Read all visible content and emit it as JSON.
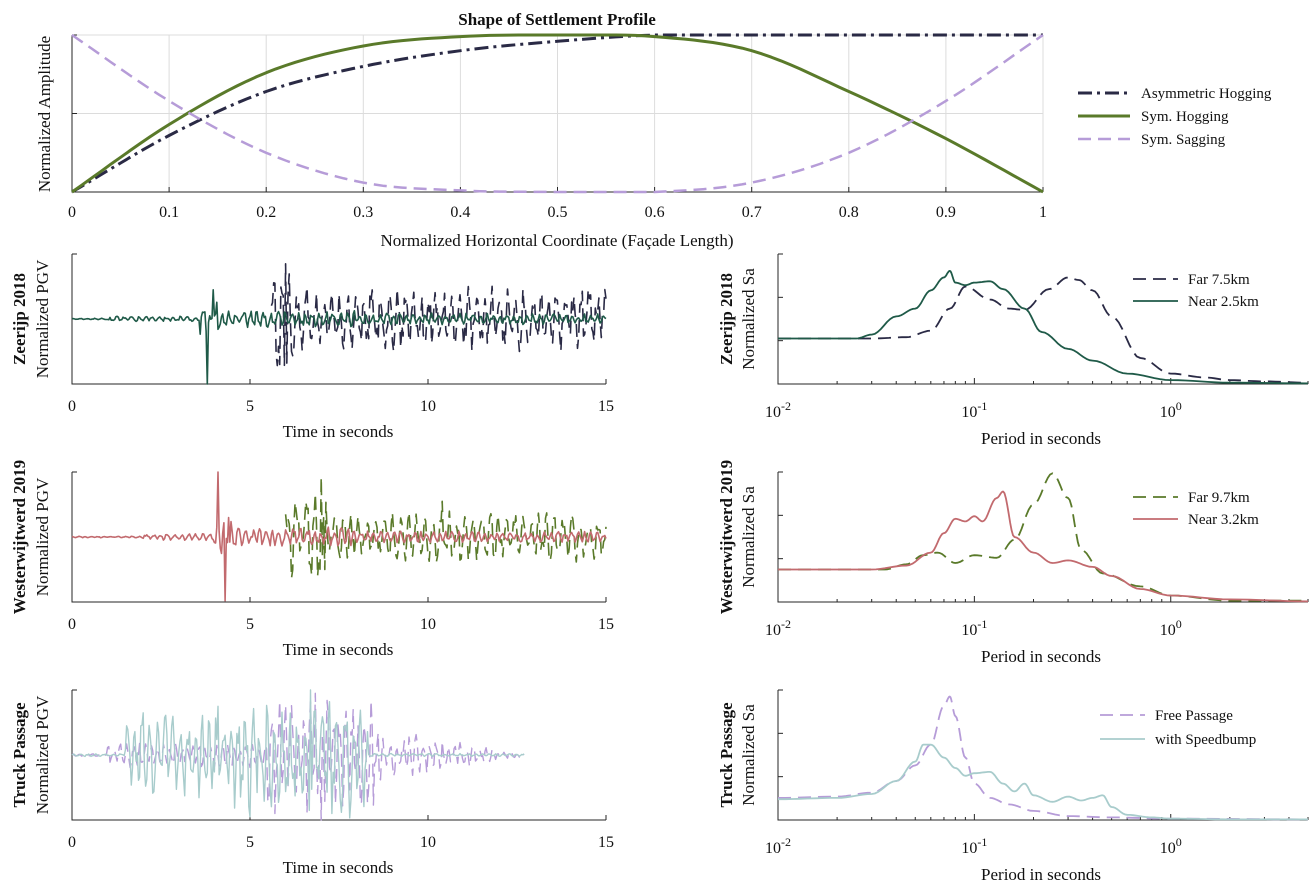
{
  "chart_data": [
    {
      "id": "settlement",
      "type": "line",
      "title": "Shape of Settlement Profile",
      "xlabel": "Normalized Horizontal Coordinate (Façade Length)",
      "ylabel": "Normalized Amplitude",
      "xlim": [
        0,
        1
      ],
      "ylim": [
        0,
        1
      ],
      "xticks": [
        0,
        0.1,
        0.2,
        0.3,
        0.4,
        0.5,
        0.6,
        0.7,
        0.8,
        0.9,
        1
      ],
      "xtick_labels": [
        "0",
        "0.1",
        "0.2",
        "0.3",
        "0.4",
        "0.5",
        "0.6",
        "0.7",
        "0.8",
        "0.9",
        "1"
      ],
      "grid": true,
      "legend": "right",
      "series": [
        {
          "name": "Asymmetric Hogging",
          "color": "#2a2a45",
          "dash": "dashdot",
          "x": [
            0,
            0.1,
            0.2,
            0.3,
            0.4,
            0.5,
            0.6,
            0.7,
            0.8,
            0.9,
            1
          ],
          "y": [
            0,
            0.36,
            0.64,
            0.8,
            0.9,
            0.96,
            1,
            1,
            1,
            1,
            1
          ]
        },
        {
          "name": "Sym. Hogging",
          "color": "#5a7a2a",
          "dash": "solid",
          "x": [
            0,
            0.1,
            0.2,
            0.3,
            0.4,
            0.5,
            0.6,
            0.7,
            0.8,
            0.9,
            1
          ],
          "y": [
            0,
            0.43,
            0.76,
            0.93,
            0.99,
            1,
            0.99,
            0.9,
            0.64,
            0.34,
            0
          ]
        },
        {
          "name": "Sym. Sagging",
          "color": "#b69cd8",
          "dash": "dashed",
          "x": [
            0,
            0.1,
            0.2,
            0.3,
            0.4,
            0.5,
            0.6,
            0.7,
            0.8,
            0.9,
            1
          ],
          "y": [
            1,
            0.58,
            0.25,
            0.06,
            0.01,
            0,
            0,
            0.06,
            0.25,
            0.58,
            1
          ]
        }
      ]
    },
    {
      "id": "zeerijp-time",
      "type": "line",
      "xlabel": "Time in seconds",
      "ylabel": "Normalized PGV",
      "row_label": "Zeerijp 2018",
      "xlim": [
        0,
        15
      ],
      "xticks": [
        0,
        5,
        10,
        15
      ],
      "xtick_labels": [
        "0",
        "5",
        "10",
        "15"
      ],
      "series": [
        {
          "color": "#2a2a45",
          "dash": "dashed",
          "t_start": 5.6,
          "t_end": 15,
          "peak": 0.85
        },
        {
          "color": "#1f5a48",
          "dash": "solid",
          "t_start": 0,
          "t_end": 15,
          "peak_time": 3.8,
          "peak": -1.0
        }
      ]
    },
    {
      "id": "zeerijp-spectrum",
      "type": "line",
      "xlabel": "Period in seconds",
      "ylabel": "Normalized Sa",
      "row_label": "Zeerijp 2018",
      "xscale": "log",
      "xlim": [
        0.01,
        5
      ],
      "xticks": [
        0.01,
        0.1,
        1
      ],
      "xtick_labels": [
        {
          "base": "10",
          "exp": "-2"
        },
        {
          "base": "10",
          "exp": "-1"
        },
        {
          "base": "10",
          "exp": "0"
        }
      ],
      "legend": "top-right",
      "series": [
        {
          "name": "Far 7.5km",
          "color": "#2a2a45",
          "dash": "dashed",
          "x": [
            0.01,
            0.03,
            0.045,
            0.06,
            0.075,
            0.09,
            0.12,
            0.15,
            0.18,
            0.24,
            0.3,
            0.34,
            0.4,
            0.5,
            0.7,
            1,
            1.5,
            2,
            3,
            5
          ],
          "y": [
            0.35,
            0.35,
            0.36,
            0.41,
            0.58,
            0.75,
            0.65,
            0.58,
            0.57,
            0.73,
            0.82,
            0.8,
            0.72,
            0.52,
            0.2,
            0.08,
            0.05,
            0.03,
            0.02,
            0.01
          ]
        },
        {
          "name": "Near 2.5km",
          "color": "#1f5a48",
          "dash": "solid",
          "x": [
            0.01,
            0.025,
            0.03,
            0.04,
            0.05,
            0.06,
            0.07,
            0.075,
            0.08,
            0.09,
            0.1,
            0.12,
            0.14,
            0.18,
            0.22,
            0.3,
            0.4,
            0.6,
            1,
            2,
            5
          ],
          "y": [
            0.35,
            0.35,
            0.38,
            0.52,
            0.58,
            0.72,
            0.82,
            0.87,
            0.78,
            0.76,
            0.78,
            0.79,
            0.73,
            0.58,
            0.4,
            0.27,
            0.18,
            0.08,
            0.03,
            0.01,
            0.005
          ]
        }
      ]
    },
    {
      "id": "westerwijtwerd-time",
      "type": "line",
      "xlabel": "Time in seconds",
      "ylabel": "Normalized PGV",
      "row_label": "Westerwijtwerd 2019",
      "xlim": [
        0,
        15
      ],
      "xticks": [
        0,
        5,
        10,
        15
      ],
      "xtick_labels": [
        "0",
        "5",
        "10",
        "15"
      ],
      "series": [
        {
          "color": "#5a7a2a",
          "dash": "dashed",
          "t_start": 6.0,
          "t_end": 15,
          "peak": 0.92
        },
        {
          "color": "#c26a6e",
          "dash": "solid",
          "t_start": 0,
          "t_end": 15,
          "peak_time": 4.2,
          "peak": 1.0
        }
      ]
    },
    {
      "id": "westerwijtwerd-spectrum",
      "type": "line",
      "xlabel": "Period in seconds",
      "ylabel": "Normalized Sa",
      "row_label": "Westerwijtwerd 2019",
      "xscale": "log",
      "xlim": [
        0.01,
        5
      ],
      "xticks": [
        0.01,
        0.1,
        1
      ],
      "xtick_labels": [
        {
          "base": "10",
          "exp": "-2"
        },
        {
          "base": "10",
          "exp": "-1"
        },
        {
          "base": "10",
          "exp": "0"
        }
      ],
      "legend": "top-right",
      "series": [
        {
          "name": "Far 9.7km",
          "color": "#5a7a2a",
          "dash": "dashed",
          "x": [
            0.01,
            0.035,
            0.045,
            0.055,
            0.065,
            0.08,
            0.1,
            0.13,
            0.16,
            0.2,
            0.25,
            0.3,
            0.35,
            0.45,
            0.7,
            1,
            2,
            5
          ],
          "y": [
            0.25,
            0.25,
            0.29,
            0.36,
            0.38,
            0.3,
            0.36,
            0.34,
            0.48,
            0.75,
            0.99,
            0.8,
            0.4,
            0.22,
            0.12,
            0.05,
            0.01,
            0.01
          ]
        },
        {
          "name": "Near 3.2km",
          "color": "#c26a6e",
          "dash": "solid",
          "x": [
            0.01,
            0.03,
            0.045,
            0.06,
            0.07,
            0.08,
            0.09,
            0.1,
            0.11,
            0.13,
            0.14,
            0.16,
            0.2,
            0.25,
            0.3,
            0.4,
            0.5,
            0.7,
            1,
            2,
            5
          ],
          "y": [
            0.25,
            0.25,
            0.28,
            0.38,
            0.53,
            0.64,
            0.62,
            0.66,
            0.62,
            0.8,
            0.85,
            0.5,
            0.38,
            0.3,
            0.32,
            0.27,
            0.2,
            0.1,
            0.05,
            0.02,
            0.005
          ]
        }
      ]
    },
    {
      "id": "truck-time",
      "type": "line",
      "xlabel": "Time in seconds",
      "ylabel": "Normalized PGV",
      "row_label": "Truck Passage",
      "xlim": [
        0,
        15
      ],
      "xticks": [
        0,
        5,
        10,
        15
      ],
      "xtick_labels": [
        "0",
        "5",
        "10",
        "15"
      ],
      "series": [
        {
          "color": "#b69cd8",
          "dash": "dashed",
          "t_start": 0,
          "t_end": 12.7,
          "peak": 1.0
        },
        {
          "color": "#a8cccc",
          "dash": "solid",
          "t_start": 0,
          "t_end": 12.7,
          "peak": 1.0
        }
      ]
    },
    {
      "id": "truck-spectrum",
      "type": "line",
      "xlabel": "Period in seconds",
      "ylabel": "Normalized Sa",
      "row_label": "Truck Passage",
      "xscale": "log",
      "xlim": [
        0.01,
        5
      ],
      "xticks": [
        0.01,
        0.1,
        1
      ],
      "xtick_labels": [
        {
          "base": "10",
          "exp": "-2"
        },
        {
          "base": "10",
          "exp": "-1"
        },
        {
          "base": "10",
          "exp": "0"
        }
      ],
      "legend": "top-right",
      "series": [
        {
          "name": "Free Passage",
          "color": "#b69cd8",
          "dash": "dashed",
          "x": [
            0.01,
            0.02,
            0.03,
            0.04,
            0.05,
            0.06,
            0.07,
            0.075,
            0.08,
            0.09,
            0.1,
            0.12,
            0.15,
            0.2,
            0.3,
            0.5,
            1,
            5
          ],
          "y": [
            0.17,
            0.18,
            0.21,
            0.3,
            0.42,
            0.58,
            0.88,
            0.95,
            0.8,
            0.48,
            0.28,
            0.17,
            0.12,
            0.07,
            0.03,
            0.02,
            0.01,
            0.005
          ]
        },
        {
          "name": "with Speedbump",
          "color": "#a8cccc",
          "dash": "solid",
          "x": [
            0.01,
            0.02,
            0.03,
            0.04,
            0.05,
            0.055,
            0.06,
            0.07,
            0.08,
            0.09,
            0.1,
            0.12,
            0.14,
            0.16,
            0.18,
            0.2,
            0.25,
            0.3,
            0.35,
            0.4,
            0.45,
            0.5,
            0.6,
            0.8,
            1,
            2,
            5
          ],
          "y": [
            0.16,
            0.17,
            0.2,
            0.3,
            0.45,
            0.58,
            0.58,
            0.48,
            0.4,
            0.34,
            0.36,
            0.37,
            0.28,
            0.22,
            0.28,
            0.19,
            0.14,
            0.18,
            0.15,
            0.17,
            0.19,
            0.1,
            0.04,
            0.02,
            0.01,
            0.005,
            0.005
          ]
        }
      ]
    }
  ]
}
